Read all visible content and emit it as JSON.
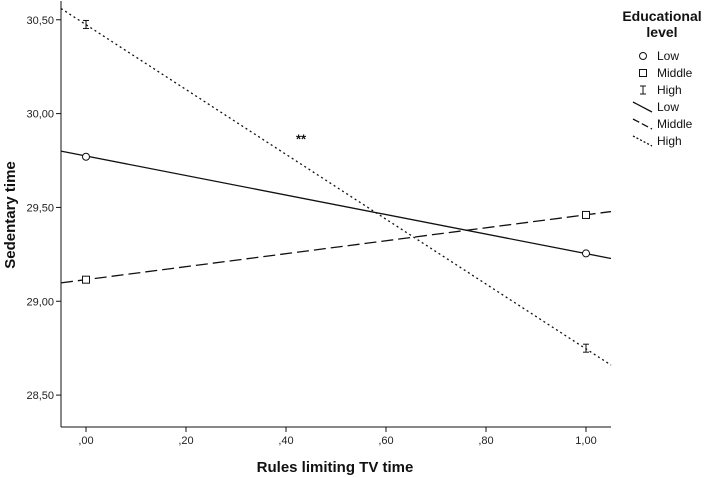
{
  "chart_data": {
    "type": "line",
    "xlabel": "Rules limiting TV time",
    "ylabel": "Sedentary time",
    "xlim": [
      -0.05,
      1.05
    ],
    "ylim": [
      28.33,
      30.6
    ],
    "x_ticks": [
      0.0,
      0.2,
      0.4,
      0.6,
      0.8,
      1.0
    ],
    "x_tick_labels": [
      ",00",
      ",20",
      ",40",
      ",60",
      ",80",
      "1,00"
    ],
    "y_ticks": [
      28.5,
      29.0,
      29.5,
      30.0,
      30.5
    ],
    "y_tick_labels": [
      "28,50",
      "29,00",
      "29,50",
      "30,00",
      "30,50"
    ],
    "grid": false,
    "legend": {
      "title_line1": "Educational",
      "title_line2": "level",
      "placement": "top-right",
      "marker_entries": [
        {
          "label": "Low",
          "marker": "circle"
        },
        {
          "label": "Middle",
          "marker": "square"
        },
        {
          "label": "High",
          "marker": "errorbar"
        }
      ],
      "line_entries": [
        {
          "label": "Low",
          "dash": "solid"
        },
        {
          "label": "Middle",
          "dash": "dashed"
        },
        {
          "label": "High",
          "dash": "dotted"
        }
      ]
    },
    "series": [
      {
        "name": "Low",
        "marker": "circle",
        "dash": "solid",
        "x": [
          0,
          1
        ],
        "y": [
          29.77,
          29.255
        ],
        "fit": [
          [
            -0.05,
            29.8
          ],
          [
            1.05,
            29.228
          ]
        ]
      },
      {
        "name": "Middle",
        "marker": "square",
        "dash": "dashed",
        "x": [
          0,
          1
        ],
        "y": [
          29.115,
          29.46
        ],
        "fit": [
          [
            -0.05,
            29.098
          ],
          [
            1.05,
            29.478
          ]
        ]
      },
      {
        "name": "High",
        "marker": "errorbar",
        "dash": "dotted",
        "x": [
          0,
          1
        ],
        "y": [
          30.475,
          28.75
        ],
        "fit": [
          [
            -0.05,
            30.56
          ],
          [
            1.05,
            28.66
          ]
        ]
      }
    ],
    "annotations": [
      {
        "text": "**",
        "x": 0.43,
        "y": 29.84
      }
    ]
  }
}
